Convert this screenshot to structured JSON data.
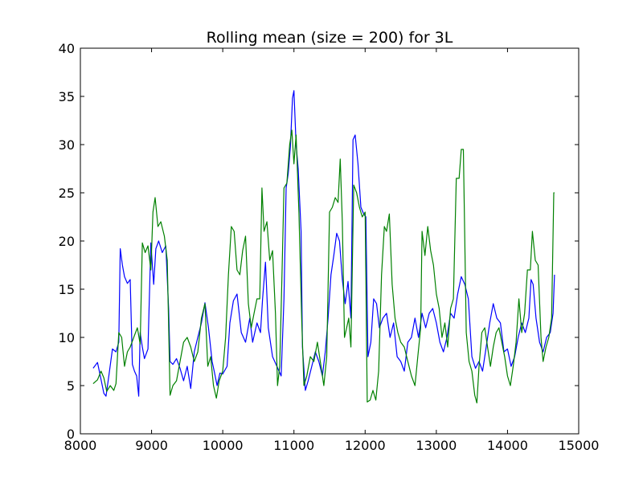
{
  "chart_data": {
    "type": "line",
    "title": "Rolling mean (size = 200) for 3L",
    "xlabel": "",
    "ylabel": "",
    "xlim": [
      8000,
      15000
    ],
    "ylim": [
      0,
      40
    ],
    "xticks": [
      8000,
      9000,
      10000,
      11000,
      12000,
      13000,
      14000,
      15000
    ],
    "yticks": [
      0,
      5,
      10,
      15,
      20,
      25,
      30,
      35,
      40
    ],
    "grid": false,
    "legend": "none",
    "series": [
      {
        "color": "#0000ff",
        "points": [
          [
            8180,
            6.8
          ],
          [
            8240,
            7.4
          ],
          [
            8280,
            6.0
          ],
          [
            8330,
            4.2
          ],
          [
            8360,
            3.9
          ],
          [
            8400,
            6.0
          ],
          [
            8450,
            8.8
          ],
          [
            8500,
            8.5
          ],
          [
            8540,
            9.5
          ],
          [
            8560,
            19.2
          ],
          [
            8590,
            17.5
          ],
          [
            8620,
            16.3
          ],
          [
            8660,
            15.6
          ],
          [
            8700,
            16.0
          ],
          [
            8730,
            7.2
          ],
          [
            8760,
            6.5
          ],
          [
            8790,
            6.0
          ],
          [
            8820,
            3.9
          ],
          [
            8840,
            10.5
          ],
          [
            8870,
            9.0
          ],
          [
            8900,
            7.8
          ],
          [
            8950,
            8.8
          ],
          [
            8990,
            19.8
          ],
          [
            9030,
            15.5
          ],
          [
            9060,
            19.2
          ],
          [
            9100,
            20.0
          ],
          [
            9150,
            18.8
          ],
          [
            9200,
            19.5
          ],
          [
            9240,
            13.0
          ],
          [
            9260,
            7.5
          ],
          [
            9300,
            7.2
          ],
          [
            9350,
            7.8
          ],
          [
            9400,
            6.8
          ],
          [
            9450,
            5.5
          ],
          [
            9500,
            7.0
          ],
          [
            9550,
            4.7
          ],
          [
            9600,
            8.5
          ],
          [
            9650,
            10.0
          ],
          [
            9700,
            11.5
          ],
          [
            9750,
            13.6
          ],
          [
            9800,
            11.0
          ],
          [
            9850,
            7.5
          ],
          [
            9880,
            6.5
          ],
          [
            9920,
            5.0
          ],
          [
            9960,
            6.3
          ],
          [
            10000,
            6.2
          ],
          [
            10060,
            7.0
          ],
          [
            10100,
            11.5
          ],
          [
            10150,
            13.8
          ],
          [
            10200,
            14.5
          ],
          [
            10260,
            10.5
          ],
          [
            10320,
            9.5
          ],
          [
            10380,
            12.0
          ],
          [
            10420,
            9.5
          ],
          [
            10480,
            11.5
          ],
          [
            10530,
            10.5
          ],
          [
            10560,
            14.0
          ],
          [
            10600,
            17.8
          ],
          [
            10640,
            11.0
          ],
          [
            10700,
            8.0
          ],
          [
            10760,
            7.0
          ],
          [
            10820,
            6.0
          ],
          [
            10860,
            14.0
          ],
          [
            10890,
            25.5
          ],
          [
            10920,
            27.0
          ],
          [
            10950,
            29.8
          ],
          [
            10980,
            34.8
          ],
          [
            11000,
            35.6
          ],
          [
            11030,
            30.0
          ],
          [
            11060,
            27.5
          ],
          [
            11100,
            21.0
          ],
          [
            11120,
            9.0
          ],
          [
            11160,
            4.5
          ],
          [
            11200,
            5.5
          ],
          [
            11250,
            7.0
          ],
          [
            11300,
            8.5
          ],
          [
            11350,
            7.5
          ],
          [
            11400,
            6.0
          ],
          [
            11440,
            8.5
          ],
          [
            11480,
            12.0
          ],
          [
            11520,
            16.5
          ],
          [
            11560,
            18.5
          ],
          [
            11600,
            20.8
          ],
          [
            11640,
            20.0
          ],
          [
            11680,
            16.0
          ],
          [
            11720,
            13.5
          ],
          [
            11760,
            15.8
          ],
          [
            11800,
            12.0
          ],
          [
            11830,
            30.5
          ],
          [
            11860,
            31.0
          ],
          [
            11900,
            28.0
          ],
          [
            11940,
            23.5
          ],
          [
            11980,
            22.8
          ],
          [
            12010,
            22.5
          ],
          [
            12040,
            8.0
          ],
          [
            12080,
            9.5
          ],
          [
            12120,
            14.0
          ],
          [
            12160,
            13.5
          ],
          [
            12200,
            11.0
          ],
          [
            12250,
            12.0
          ],
          [
            12300,
            12.5
          ],
          [
            12350,
            10.0
          ],
          [
            12400,
            11.5
          ],
          [
            12450,
            8.0
          ],
          [
            12500,
            7.5
          ],
          [
            12550,
            6.5
          ],
          [
            12600,
            9.5
          ],
          [
            12650,
            10.0
          ],
          [
            12700,
            12.0
          ],
          [
            12750,
            10.0
          ],
          [
            12800,
            12.5
          ],
          [
            12850,
            11.0
          ],
          [
            12900,
            12.5
          ],
          [
            12950,
            13.0
          ],
          [
            13000,
            11.5
          ],
          [
            13050,
            9.5
          ],
          [
            13100,
            8.5
          ],
          [
            13150,
            10.0
          ],
          [
            13200,
            12.5
          ],
          [
            13250,
            12.0
          ],
          [
            13300,
            14.5
          ],
          [
            13350,
            16.3
          ],
          [
            13400,
            15.5
          ],
          [
            13450,
            14.0
          ],
          [
            13500,
            8.0
          ],
          [
            13550,
            6.8
          ],
          [
            13600,
            7.5
          ],
          [
            13650,
            6.5
          ],
          [
            13700,
            9.0
          ],
          [
            13750,
            11.5
          ],
          [
            13800,
            13.5
          ],
          [
            13850,
            12.0
          ],
          [
            13900,
            11.5
          ],
          [
            13950,
            8.5
          ],
          [
            14000,
            8.8
          ],
          [
            14050,
            7.0
          ],
          [
            14100,
            8.0
          ],
          [
            14150,
            10.0
          ],
          [
            14200,
            11.5
          ],
          [
            14250,
            10.5
          ],
          [
            14300,
            12.0
          ],
          [
            14330,
            16.0
          ],
          [
            14360,
            15.5
          ],
          [
            14400,
            12.0
          ],
          [
            14450,
            9.5
          ],
          [
            14500,
            8.5
          ],
          [
            14550,
            10.0
          ],
          [
            14600,
            10.5
          ],
          [
            14640,
            12.5
          ],
          [
            14660,
            16.5
          ]
        ]
      },
      {
        "color": "#008000",
        "points": [
          [
            8180,
            5.2
          ],
          [
            8240,
            5.6
          ],
          [
            8290,
            6.5
          ],
          [
            8330,
            5.8
          ],
          [
            8370,
            4.4
          ],
          [
            8420,
            5.0
          ],
          [
            8470,
            4.5
          ],
          [
            8500,
            5.2
          ],
          [
            8540,
            10.5
          ],
          [
            8580,
            10.0
          ],
          [
            8620,
            7.0
          ],
          [
            8660,
            8.5
          ],
          [
            8700,
            9.0
          ],
          [
            8760,
            10.2
          ],
          [
            8800,
            11.0
          ],
          [
            8840,
            9.3
          ],
          [
            8870,
            19.8
          ],
          [
            8910,
            18.8
          ],
          [
            8950,
            19.5
          ],
          [
            8990,
            17.0
          ],
          [
            9020,
            23.0
          ],
          [
            9050,
            24.5
          ],
          [
            9090,
            21.5
          ],
          [
            9130,
            22.0
          ],
          [
            9180,
            20.5
          ],
          [
            9220,
            18.0
          ],
          [
            9260,
            4.0
          ],
          [
            9300,
            5.0
          ],
          [
            9350,
            5.5
          ],
          [
            9400,
            7.5
          ],
          [
            9450,
            9.5
          ],
          [
            9500,
            10.0
          ],
          [
            9550,
            9.0
          ],
          [
            9600,
            7.5
          ],
          [
            9650,
            8.5
          ],
          [
            9700,
            12.0
          ],
          [
            9750,
            13.5
          ],
          [
            9790,
            7.0
          ],
          [
            9830,
            8.0
          ],
          [
            9870,
            5.0
          ],
          [
            9910,
            3.7
          ],
          [
            9950,
            5.5
          ],
          [
            10000,
            6.5
          ],
          [
            10040,
            10.0
          ],
          [
            10080,
            16.5
          ],
          [
            10120,
            21.5
          ],
          [
            10160,
            21.0
          ],
          [
            10200,
            17.0
          ],
          [
            10240,
            16.5
          ],
          [
            10280,
            19.0
          ],
          [
            10320,
            20.5
          ],
          [
            10360,
            13.5
          ],
          [
            10400,
            11.0
          ],
          [
            10440,
            12.5
          ],
          [
            10480,
            14.0
          ],
          [
            10520,
            14.0
          ],
          [
            10550,
            25.5
          ],
          [
            10580,
            21.0
          ],
          [
            10620,
            22.0
          ],
          [
            10660,
            18.0
          ],
          [
            10700,
            19.0
          ],
          [
            10740,
            12.5
          ],
          [
            10770,
            5.0
          ],
          [
            10800,
            7.0
          ],
          [
            10830,
            16.0
          ],
          [
            10860,
            25.5
          ],
          [
            10900,
            26.0
          ],
          [
            10940,
            30.0
          ],
          [
            10970,
            31.5
          ],
          [
            11000,
            28.0
          ],
          [
            11030,
            31.0
          ],
          [
            11070,
            23.0
          ],
          [
            11110,
            11.5
          ],
          [
            11140,
            5.0
          ],
          [
            11180,
            6.0
          ],
          [
            11230,
            8.0
          ],
          [
            11280,
            7.5
          ],
          [
            11330,
            9.5
          ],
          [
            11380,
            7.0
          ],
          [
            11420,
            5.0
          ],
          [
            11460,
            8.0
          ],
          [
            11500,
            23.0
          ],
          [
            11540,
            23.5
          ],
          [
            11580,
            24.5
          ],
          [
            11620,
            24.0
          ],
          [
            11650,
            28.5
          ],
          [
            11680,
            22.0
          ],
          [
            11710,
            10.0
          ],
          [
            11740,
            11.0
          ],
          [
            11770,
            12.0
          ],
          [
            11800,
            9.0
          ],
          [
            11840,
            25.8
          ],
          [
            11880,
            25.0
          ],
          [
            11920,
            23.5
          ],
          [
            11960,
            22.5
          ],
          [
            12000,
            23.0
          ],
          [
            12030,
            3.3
          ],
          [
            12070,
            3.5
          ],
          [
            12110,
            4.5
          ],
          [
            12150,
            3.5
          ],
          [
            12190,
            6.5
          ],
          [
            12230,
            16.5
          ],
          [
            12270,
            21.5
          ],
          [
            12300,
            21.0
          ],
          [
            12340,
            22.8
          ],
          [
            12380,
            15.5
          ],
          [
            12420,
            12.0
          ],
          [
            12460,
            10.5
          ],
          [
            12500,
            9.5
          ],
          [
            12550,
            9.0
          ],
          [
            12600,
            7.5
          ],
          [
            12650,
            6.0
          ],
          [
            12700,
            5.0
          ],
          [
            12740,
            8.0
          ],
          [
            12780,
            11.0
          ],
          [
            12800,
            21.0
          ],
          [
            12840,
            18.5
          ],
          [
            12880,
            21.5
          ],
          [
            12920,
            19.0
          ],
          [
            12960,
            17.5
          ],
          [
            13000,
            14.5
          ],
          [
            13040,
            13.0
          ],
          [
            13080,
            10.0
          ],
          [
            13120,
            11.5
          ],
          [
            13160,
            9.0
          ],
          [
            13200,
            13.0
          ],
          [
            13240,
            14.0
          ],
          [
            13280,
            26.5
          ],
          [
            13320,
            26.5
          ],
          [
            13350,
            29.5
          ],
          [
            13380,
            29.5
          ],
          [
            13420,
            10.5
          ],
          [
            13460,
            7.5
          ],
          [
            13500,
            6.5
          ],
          [
            13540,
            4.0
          ],
          [
            13570,
            3.2
          ],
          [
            13600,
            7.0
          ],
          [
            13640,
            10.5
          ],
          [
            13680,
            11.0
          ],
          [
            13720,
            9.0
          ],
          [
            13760,
            7.0
          ],
          [
            13800,
            9.0
          ],
          [
            13840,
            10.5
          ],
          [
            13880,
            11.0
          ],
          [
            13920,
            9.5
          ],
          [
            13960,
            8.0
          ],
          [
            14000,
            6.0
          ],
          [
            14040,
            5.0
          ],
          [
            14080,
            7.0
          ],
          [
            14120,
            9.5
          ],
          [
            14160,
            14.0
          ],
          [
            14200,
            10.5
          ],
          [
            14240,
            12.5
          ],
          [
            14280,
            17.0
          ],
          [
            14320,
            17.0
          ],
          [
            14350,
            21.0
          ],
          [
            14390,
            18.0
          ],
          [
            14430,
            17.5
          ],
          [
            14470,
            10.0
          ],
          [
            14500,
            7.5
          ],
          [
            14540,
            9.0
          ],
          [
            14580,
            10.0
          ],
          [
            14620,
            12.0
          ],
          [
            14650,
            25.0
          ],
          [
            14660,
            25.0
          ]
        ]
      }
    ]
  }
}
